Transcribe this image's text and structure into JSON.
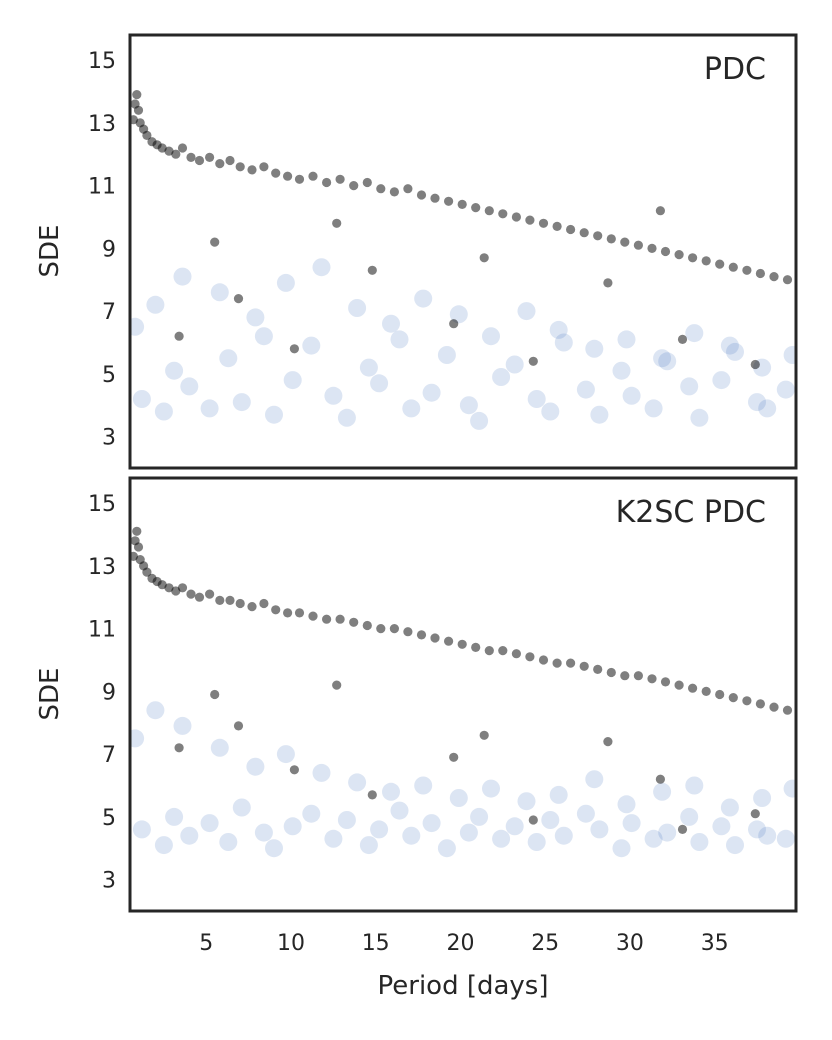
{
  "chart_data": [
    {
      "type": "scatter",
      "title": "PDC",
      "xlabel": "",
      "ylabel": "SDE",
      "xlim": [
        0.5,
        39.8
      ],
      "ylim": [
        2,
        15.8
      ],
      "xticks": [],
      "yticks": [
        3,
        5,
        7,
        9,
        11,
        13,
        15
      ],
      "grid": false,
      "series": [
        {
          "color": "#3c6fbf",
          "opacity": 0.18,
          "x": [
            1.2,
            2.5,
            3.1,
            4.0,
            5.2,
            6.3,
            7.1,
            8.4,
            9.0,
            10.1,
            11.2,
            12.5,
            13.3,
            14.6,
            15.2,
            16.4,
            17.1,
            18.3,
            19.2,
            20.5,
            21.1,
            22.4,
            23.2,
            24.5,
            25.3,
            26.1,
            27.4,
            28.2,
            29.5,
            30.1,
            31.4,
            32.2,
            33.5,
            34.1,
            35.4,
            36.2,
            37.5,
            38.1,
            39.2,
            0.8,
            2.0,
            3.6,
            5.8,
            7.9,
            9.7,
            11.8,
            13.9,
            15.9,
            17.8,
            19.9,
            21.8,
            23.9,
            25.8,
            27.9,
            29.8,
            31.9,
            33.8,
            35.9,
            37.8,
            39.6
          ],
          "y": [
            4.2,
            3.8,
            5.1,
            4.6,
            3.9,
            5.5,
            4.1,
            6.2,
            3.7,
            4.8,
            5.9,
            4.3,
            3.6,
            5.2,
            4.7,
            6.1,
            3.9,
            4.4,
            5.6,
            4.0,
            3.5,
            4.9,
            5.3,
            4.2,
            3.8,
            6.0,
            4.5,
            3.7,
            5.1,
            4.3,
            3.9,
            5.4,
            4.6,
            3.6,
            4.8,
            5.7,
            4.1,
            3.9,
            4.5,
            6.5,
            7.2,
            8.1,
            7.6,
            6.8,
            7.9,
            8.4,
            7.1,
            6.6,
            7.4,
            6.9,
            6.2,
            7.0,
            6.4,
            5.8,
            6.1,
            5.5,
            6.3,
            5.9,
            5.2,
            5.6
          ]
        },
        {
          "color": "#000000",
          "opacity": 0.5,
          "x": [
            0.7,
            0.8,
            0.9,
            1.0,
            1.1,
            1.3,
            1.5,
            1.8,
            2.1,
            2.4,
            2.8,
            3.2,
            3.6,
            4.1,
            4.6,
            5.2,
            5.8,
            6.4,
            7.0,
            7.7,
            8.4,
            9.1,
            9.8,
            10.5,
            11.3,
            12.1,
            12.9,
            13.7,
            14.5,
            15.3,
            16.1,
            16.9,
            17.7,
            18.5,
            19.3,
            20.1,
            20.9,
            21.7,
            22.5,
            23.3,
            24.1,
            24.9,
            25.7,
            26.5,
            27.3,
            28.1,
            28.9,
            29.7,
            30.5,
            31.3,
            32.1,
            32.9,
            33.7,
            34.5,
            35.3,
            36.1,
            36.9,
            37.7,
            38.5,
            39.3,
            3.4,
            6.9,
            10.2,
            14.8,
            19.6,
            24.3,
            28.7,
            33.1,
            37.4,
            5.5,
            12.7,
            21.4,
            31.8
          ],
          "y": [
            13.1,
            13.6,
            13.9,
            13.4,
            13.0,
            12.8,
            12.6,
            12.4,
            12.3,
            12.2,
            12.1,
            12.0,
            12.2,
            11.9,
            11.8,
            11.9,
            11.7,
            11.8,
            11.6,
            11.5,
            11.6,
            11.4,
            11.3,
            11.2,
            11.3,
            11.1,
            11.2,
            11.0,
            11.1,
            10.9,
            10.8,
            10.9,
            10.7,
            10.6,
            10.5,
            10.4,
            10.3,
            10.2,
            10.1,
            10.0,
            9.9,
            9.8,
            9.7,
            9.6,
            9.5,
            9.4,
            9.3,
            9.2,
            9.1,
            9.0,
            8.9,
            8.8,
            8.7,
            8.6,
            8.5,
            8.4,
            8.3,
            8.2,
            8.1,
            8.0,
            6.2,
            7.4,
            5.8,
            8.3,
            6.6,
            5.4,
            7.9,
            6.1,
            5.3,
            9.2,
            9.8,
            8.7,
            10.2
          ]
        }
      ]
    },
    {
      "type": "scatter",
      "title": "K2SC PDC",
      "xlabel": "Period [days]",
      "ylabel": "SDE",
      "xlim": [
        0.5,
        39.8
      ],
      "ylim": [
        2,
        15.8
      ],
      "xticks": [
        5,
        10,
        15,
        20,
        25,
        30,
        35
      ],
      "yticks": [
        3,
        5,
        7,
        9,
        11,
        13,
        15
      ],
      "grid": false,
      "series": [
        {
          "color": "#3c6fbf",
          "opacity": 0.18,
          "x": [
            1.2,
            2.5,
            3.1,
            4.0,
            5.2,
            6.3,
            7.1,
            8.4,
            9.0,
            10.1,
            11.2,
            12.5,
            13.3,
            14.6,
            15.2,
            16.4,
            17.1,
            18.3,
            19.2,
            20.5,
            21.1,
            22.4,
            23.2,
            24.5,
            25.3,
            26.1,
            27.4,
            28.2,
            29.5,
            30.1,
            31.4,
            32.2,
            33.5,
            34.1,
            35.4,
            36.2,
            37.5,
            38.1,
            39.2,
            0.8,
            2.0,
            3.6,
            5.8,
            7.9,
            9.7,
            11.8,
            13.9,
            15.9,
            17.8,
            19.9,
            21.8,
            23.9,
            25.8,
            27.9,
            29.8,
            31.9,
            33.8,
            35.9,
            37.8,
            39.6
          ],
          "y": [
            4.6,
            4.1,
            5.0,
            4.4,
            4.8,
            4.2,
            5.3,
            4.5,
            4.0,
            4.7,
            5.1,
            4.3,
            4.9,
            4.1,
            4.6,
            5.2,
            4.4,
            4.8,
            4.0,
            4.5,
            5.0,
            4.3,
            4.7,
            4.2,
            4.9,
            4.4,
            5.1,
            4.6,
            4.0,
            4.8,
            4.3,
            4.5,
            5.0,
            4.2,
            4.7,
            4.1,
            4.6,
            4.4,
            4.3,
            7.5,
            8.4,
            7.9,
            7.2,
            6.6,
            7.0,
            6.4,
            6.1,
            5.8,
            6.0,
            5.6,
            5.9,
            5.5,
            5.7,
            6.2,
            5.4,
            5.8,
            6.0,
            5.3,
            5.6,
            5.9
          ]
        },
        {
          "color": "#000000",
          "opacity": 0.5,
          "x": [
            0.7,
            0.8,
            0.9,
            1.0,
            1.1,
            1.3,
            1.5,
            1.8,
            2.1,
            2.4,
            2.8,
            3.2,
            3.6,
            4.1,
            4.6,
            5.2,
            5.8,
            6.4,
            7.0,
            7.7,
            8.4,
            9.1,
            9.8,
            10.5,
            11.3,
            12.1,
            12.9,
            13.7,
            14.5,
            15.3,
            16.1,
            16.9,
            17.7,
            18.5,
            19.3,
            20.1,
            20.9,
            21.7,
            22.5,
            23.3,
            24.1,
            24.9,
            25.7,
            26.5,
            27.3,
            28.1,
            28.9,
            29.7,
            30.5,
            31.3,
            32.1,
            32.9,
            33.7,
            34.5,
            35.3,
            36.1,
            36.9,
            37.7,
            38.5,
            39.3,
            3.4,
            6.9,
            10.2,
            14.8,
            19.6,
            24.3,
            28.7,
            33.1,
            37.4,
            5.5,
            12.7,
            21.4,
            31.8
          ],
          "y": [
            13.3,
            13.8,
            14.1,
            13.6,
            13.2,
            13.0,
            12.8,
            12.6,
            12.5,
            12.4,
            12.3,
            12.2,
            12.3,
            12.1,
            12.0,
            12.1,
            11.9,
            11.9,
            11.8,
            11.7,
            11.8,
            11.6,
            11.5,
            11.5,
            11.4,
            11.3,
            11.3,
            11.2,
            11.1,
            11.0,
            11.0,
            10.9,
            10.8,
            10.7,
            10.6,
            10.5,
            10.4,
            10.3,
            10.3,
            10.2,
            10.1,
            10.0,
            9.9,
            9.9,
            9.8,
            9.7,
            9.6,
            9.5,
            9.5,
            9.4,
            9.3,
            9.2,
            9.1,
            9.0,
            8.9,
            8.8,
            8.7,
            8.6,
            8.5,
            8.4,
            7.2,
            7.9,
            6.5,
            5.7,
            6.9,
            4.9,
            7.4,
            4.6,
            5.1,
            8.9,
            9.2,
            7.6,
            6.2
          ]
        }
      ]
    }
  ]
}
